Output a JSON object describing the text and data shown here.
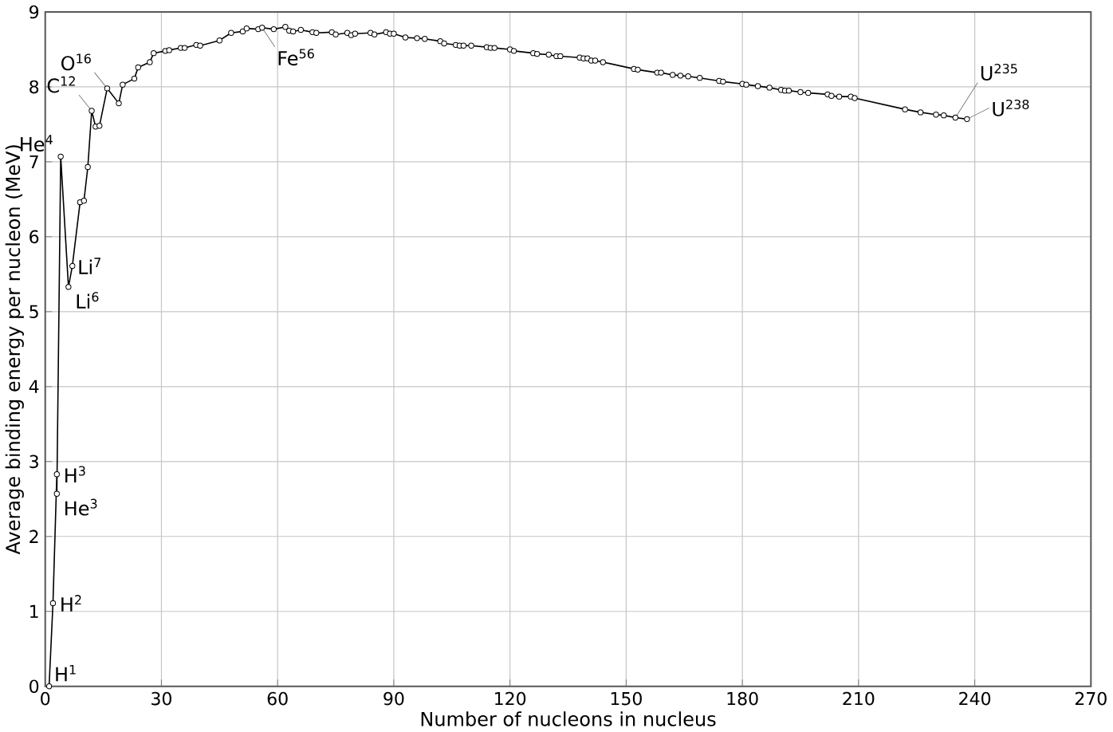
{
  "chart_data": {
    "type": "line",
    "xlabel": "Number of nucleons in nucleus",
    "ylabel": "Average binding energy per nucleon (MeV)",
    "xlim": [
      0,
      270
    ],
    "ylim": [
      0,
      9
    ],
    "xticks": [
      0,
      30,
      60,
      90,
      120,
      150,
      180,
      210,
      240,
      270
    ],
    "yticks": [
      0,
      1,
      2,
      3,
      4,
      5,
      6,
      7,
      8,
      9
    ],
    "grid": true,
    "marker": "circle",
    "line_style": "solid",
    "series": [
      {
        "color": "#000000",
        "x": [
          1,
          2,
          3,
          3,
          4,
          6,
          7,
          9,
          10,
          11,
          12,
          13,
          14,
          16,
          19,
          20,
          23,
          24,
          27,
          28,
          31,
          32,
          35,
          36,
          39,
          40,
          45,
          48,
          51,
          52,
          55,
          56,
          59,
          62,
          63,
          64,
          66,
          69,
          70,
          74,
          75,
          78,
          79,
          80,
          84,
          85,
          88,
          89,
          90,
          93,
          96,
          98,
          102,
          103,
          106,
          107,
          108,
          110,
          114,
          115,
          116,
          120,
          121,
          126,
          127,
          130,
          132,
          133,
          138,
          139,
          140,
          141,
          142,
          144,
          152,
          153,
          158,
          159,
          162,
          164,
          166,
          169,
          174,
          175,
          180,
          181,
          184,
          187,
          190,
          191,
          192,
          195,
          197,
          202,
          203,
          205,
          208,
          209,
          222,
          226,
          230,
          232,
          235,
          238
        ],
        "values": [
          0,
          1.11,
          2.83,
          2.57,
          7.07,
          5.33,
          5.61,
          6.46,
          6.48,
          6.93,
          7.68,
          7.47,
          7.48,
          7.98,
          7.78,
          8.03,
          8.11,
          8.26,
          8.33,
          8.45,
          8.48,
          8.49,
          8.52,
          8.52,
          8.56,
          8.55,
          8.62,
          8.72,
          8.74,
          8.78,
          8.77,
          8.79,
          8.77,
          8.8,
          8.75,
          8.74,
          8.76,
          8.73,
          8.72,
          8.73,
          8.7,
          8.72,
          8.69,
          8.71,
          8.72,
          8.7,
          8.73,
          8.71,
          8.71,
          8.66,
          8.65,
          8.64,
          8.61,
          8.58,
          8.56,
          8.55,
          8.55,
          8.55,
          8.53,
          8.52,
          8.52,
          8.5,
          8.48,
          8.45,
          8.44,
          8.43,
          8.41,
          8.41,
          8.39,
          8.38,
          8.38,
          8.35,
          8.35,
          8.33,
          8.24,
          8.23,
          8.19,
          8.19,
          8.16,
          8.15,
          8.14,
          8.12,
          8.08,
          8.07,
          8.04,
          8.03,
          8.01,
          7.99,
          7.96,
          7.95,
          7.95,
          7.93,
          7.92,
          7.9,
          7.88,
          7.87,
          7.87,
          7.85,
          7.7,
          7.66,
          7.63,
          7.62,
          7.59,
          7.57
        ]
      }
    ],
    "annotations": [
      {
        "text": "H$^{1}$",
        "x": 1,
        "y": 0
      },
      {
        "text": "H$^{2}$",
        "x": 2,
        "y": 1.11
      },
      {
        "text": "H$^{3}$",
        "x": 3,
        "y": 2.83
      },
      {
        "text": "He$^{3}$",
        "x": 3,
        "y": 2.57
      },
      {
        "text": "He$^{4}$",
        "x": 4,
        "y": 7.07
      },
      {
        "text": "Li$^{7}$",
        "x": 7,
        "y": 5.61
      },
      {
        "text": "Li$^{6}$",
        "x": 6,
        "y": 5.33
      },
      {
        "text": "C$^{12}$",
        "x": 12,
        "y": 7.68
      },
      {
        "text": "O$^{16}$",
        "x": 16,
        "y": 7.98
      },
      {
        "text": "Fe$^{56}$",
        "x": 56,
        "y": 8.79
      },
      {
        "text": "U$^{235}$",
        "x": 235,
        "y": 7.59
      },
      {
        "text": "U$^{238}$",
        "x": 238,
        "y": 7.57
      }
    ]
  }
}
